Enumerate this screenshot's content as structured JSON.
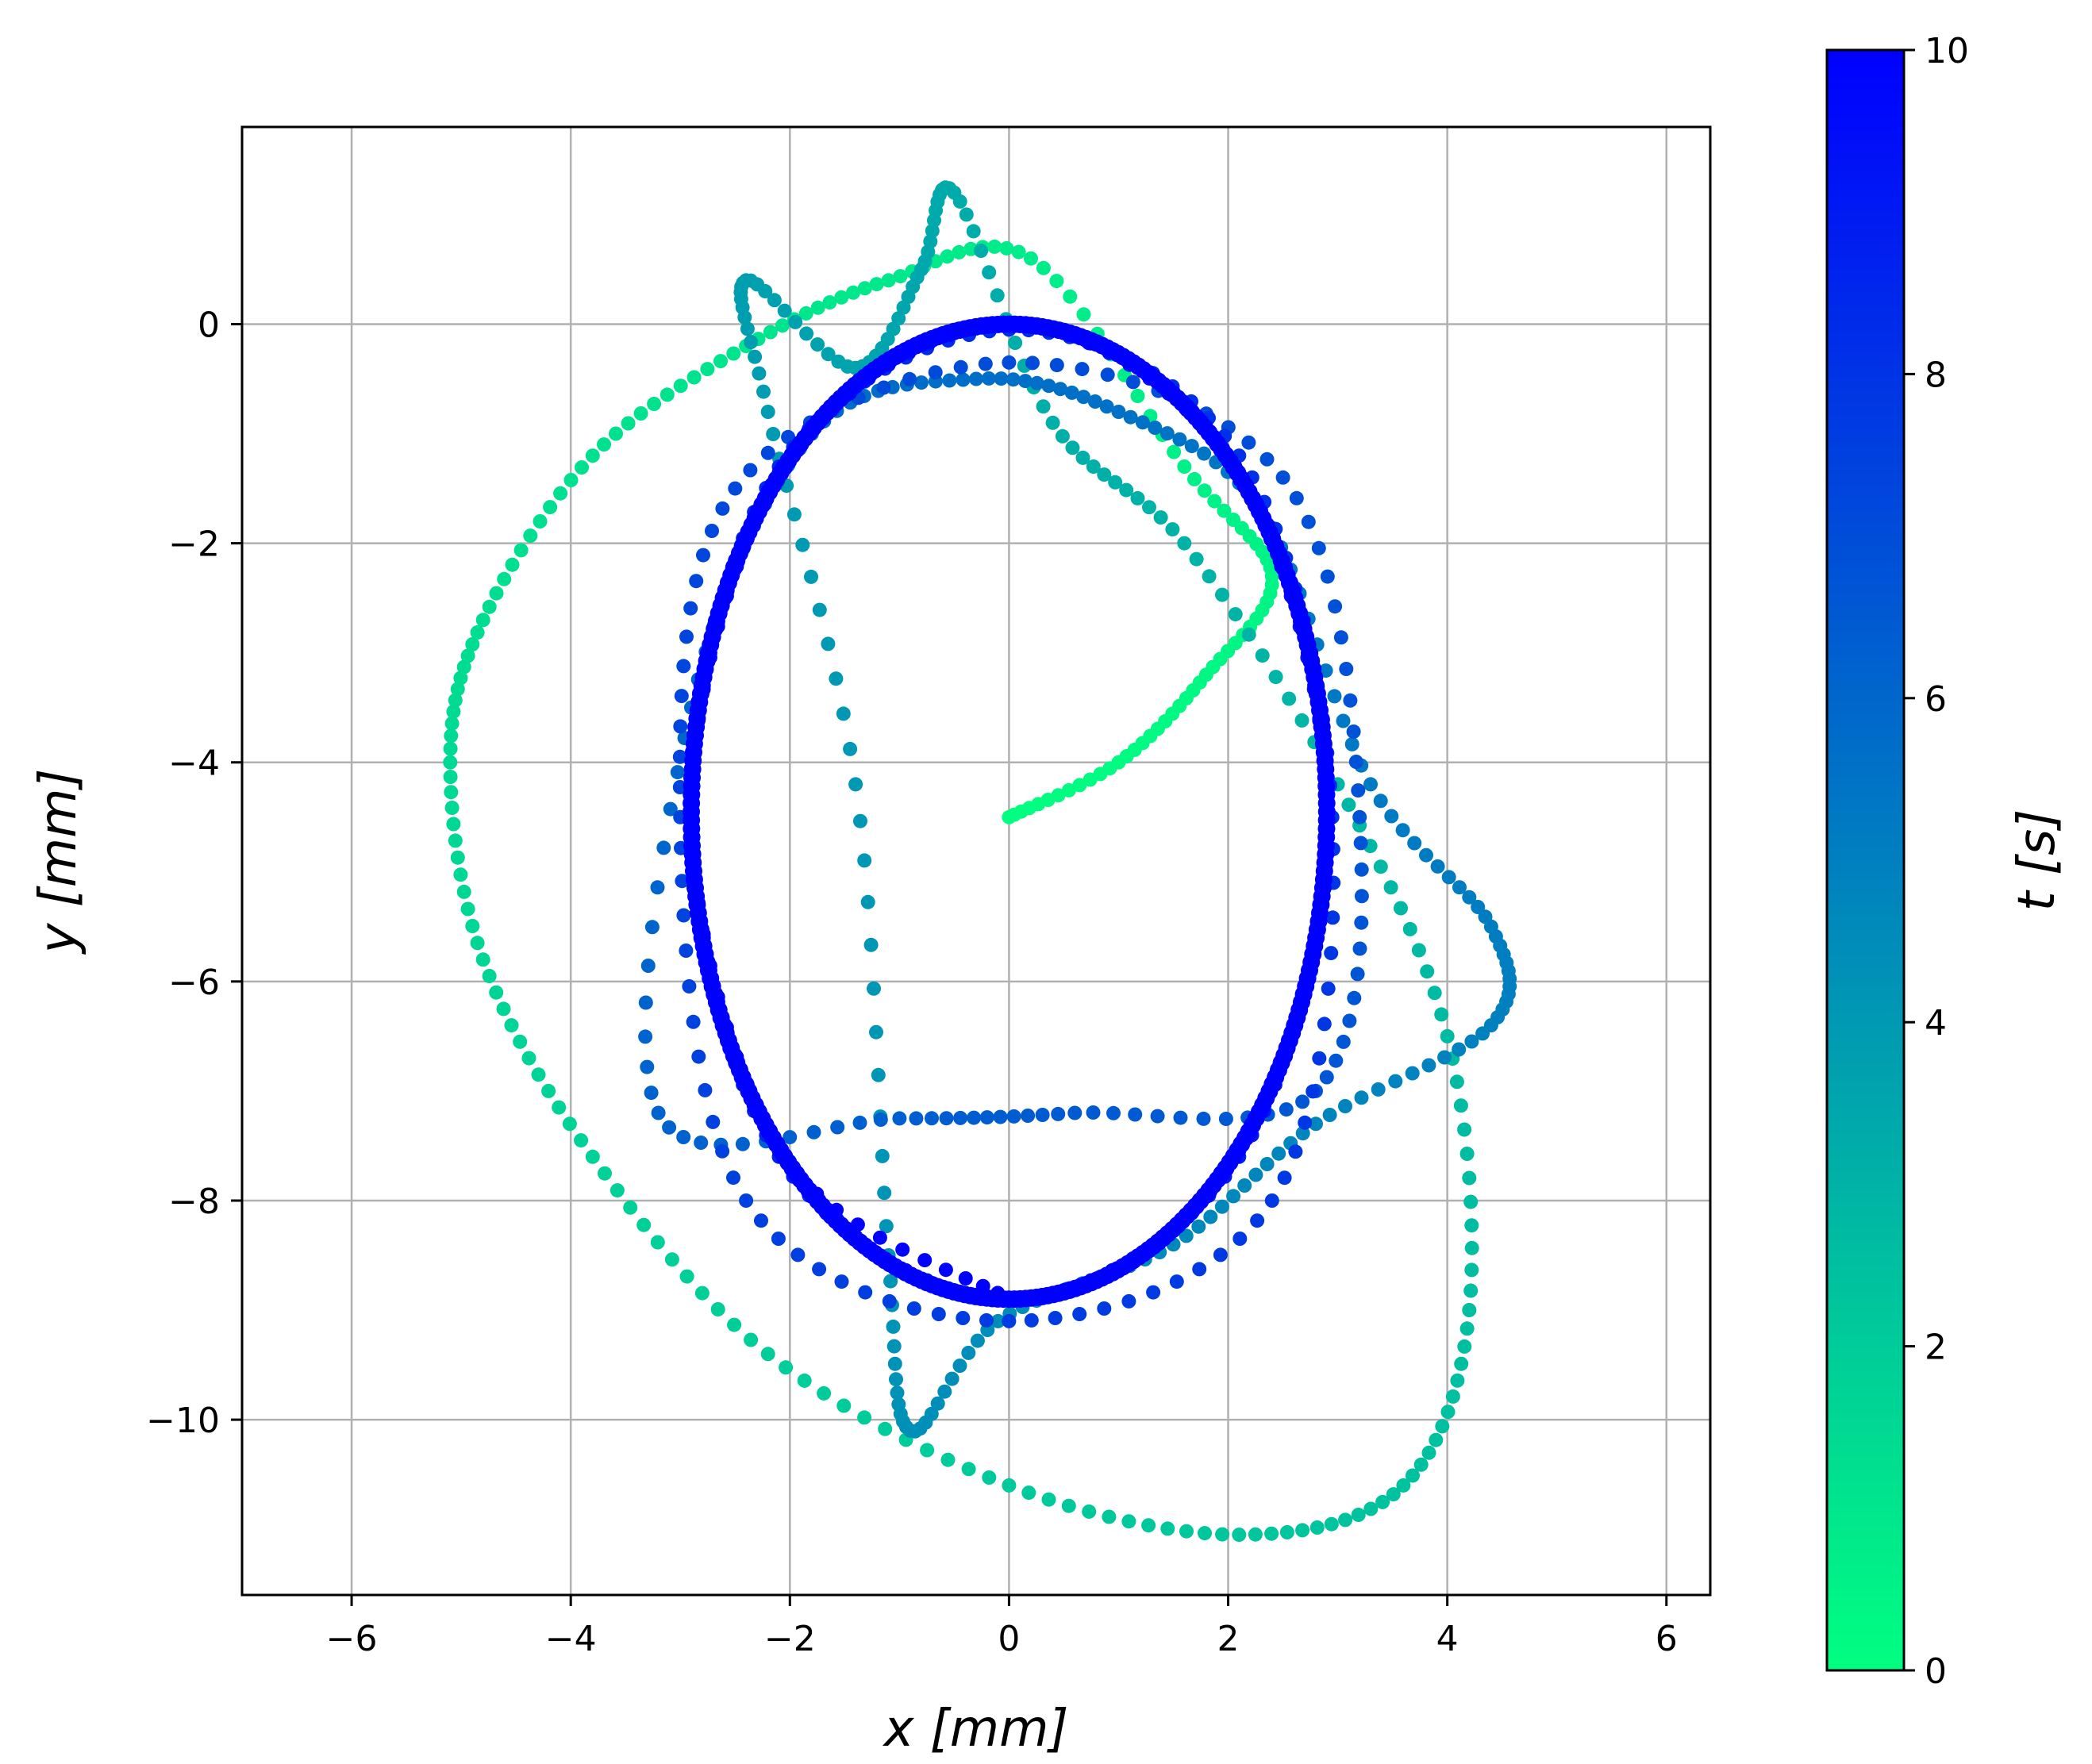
{
  "chart_data": {
    "type": "scatter",
    "title": "",
    "xlabel": "x [mm]",
    "ylabel": "y [mm]",
    "xlim": [
      -7.0,
      6.4
    ],
    "ylim": [
      -11.6,
      1.8
    ],
    "xticks": [
      -6,
      -4,
      -2,
      0,
      2,
      4,
      6
    ],
    "xtick_labels": [
      "−6",
      "−4",
      "−2",
      "0",
      "2",
      "4",
      "6"
    ],
    "yticks": [
      0,
      -2,
      -4,
      -6,
      -8,
      -10
    ],
    "ytick_labels": [
      "0",
      "−2",
      "−4",
      "−6",
      "−8",
      "−10"
    ],
    "grid": true,
    "legend": "none",
    "colorbar": {
      "label": "t [s]",
      "range": [
        0,
        10
      ],
      "ticks": [
        0,
        2,
        4,
        6,
        8,
        10
      ],
      "tick_labels": [
        "0",
        "2",
        "4",
        "6",
        "8",
        "10"
      ],
      "colormap": "winter_r",
      "color_low": "#00ff80",
      "color_high": "#0000ff"
    },
    "trajectory": {
      "t_range": [
        0,
        10
      ],
      "start_point": [
        0.0,
        -4.5
      ],
      "final_orbit_center": [
        0.0,
        -4.45
      ],
      "final_orbit_semi_axes": [
        2.9,
        4.45
      ],
      "samples": [
        [
          0.0,
          0.0,
          -4.5
        ],
        [
          0.15,
          1.0,
          -4.0
        ],
        [
          0.3,
          1.8,
          -3.2
        ],
        [
          0.45,
          2.4,
          -2.3
        ],
        [
          0.6,
          1.6,
          -1.3
        ],
        [
          0.75,
          0.2,
          0.6
        ],
        [
          0.9,
          -1.1,
          0.4
        ],
        [
          1.05,
          -2.4,
          -0.2
        ],
        [
          1.2,
          -3.8,
          -1.2
        ],
        [
          1.35,
          -4.8,
          -2.7
        ],
        [
          1.5,
          -5.1,
          -4.0
        ],
        [
          1.65,
          -4.8,
          -5.8
        ],
        [
          1.8,
          -3.8,
          -7.6
        ],
        [
          1.95,
          -2.2,
          -9.4
        ],
        [
          2.1,
          0.0,
          -10.6
        ],
        [
          2.25,
          2.1,
          -11.05
        ],
        [
          2.4,
          3.6,
          -10.6
        ],
        [
          2.55,
          4.2,
          -9.0
        ],
        [
          2.7,
          4.0,
          -6.5
        ],
        [
          2.85,
          3.0,
          -4.2
        ],
        [
          3.0,
          1.6,
          -2.0
        ],
        [
          3.15,
          0.4,
          -0.9
        ],
        [
          3.3,
          -0.5,
          1.2
        ],
        [
          3.45,
          -0.8,
          0.5
        ],
        [
          3.6,
          -1.4,
          -0.4
        ],
        [
          3.75,
          -2.4,
          0.4
        ],
        [
          3.9,
          -2.2,
          -0.8
        ],
        [
          4.05,
          -1.4,
          -4.2
        ],
        [
          4.2,
          -1.1,
          -8.5
        ],
        [
          4.35,
          -0.9,
          -10.1
        ],
        [
          4.5,
          -0.1,
          -9.1
        ],
        [
          4.65,
          1.5,
          -8.4
        ],
        [
          4.8,
          2.8,
          -7.3
        ],
        [
          4.95,
          4.4,
          -6.4
        ],
        [
          5.1,
          4.4,
          -5.5
        ],
        [
          5.25,
          3.3,
          -4.2
        ],
        [
          5.4,
          2.3,
          -1.7
        ],
        [
          5.55,
          1.0,
          -0.8
        ],
        [
          5.7,
          -0.3,
          -0.5
        ],
        [
          5.85,
          -1.8,
          -1.0
        ],
        [
          6.0,
          -2.9,
          -3.5
        ],
        [
          6.15,
          -3.2,
          -7.2
        ],
        [
          6.3,
          -1.0,
          -7.25
        ],
        [
          6.45,
          0.6,
          -7.2
        ],
        [
          6.6,
          2.8,
          -7.0
        ],
        [
          6.75,
          3.2,
          -4.5
        ],
        [
          6.9,
          2.5,
          -1.4
        ],
        [
          7.05,
          0.0,
          -0.35
        ],
        [
          7.2,
          -2.5,
          -1.5
        ],
        [
          7.35,
          -3.0,
          -4.5
        ],
        [
          7.5,
          -2.4,
          -8.0
        ],
        [
          7.65,
          0.0,
          -9.1
        ],
        [
          7.8,
          2.4,
          -8.0
        ],
        [
          7.95,
          2.95,
          -4.5
        ],
        [
          8.1,
          2.1,
          -1.2
        ],
        [
          8.25,
          0.0,
          -0.05
        ],
        [
          8.4,
          -2.1,
          -1.3
        ],
        [
          8.55,
          -2.9,
          -4.45
        ],
        [
          8.7,
          -2.1,
          -7.6
        ],
        [
          8.85,
          0.0,
          -8.9
        ],
        [
          9.0,
          2.1,
          -7.6
        ],
        [
          9.15,
          2.9,
          -4.45
        ],
        [
          9.3,
          2.05,
          -1.3
        ],
        [
          9.45,
          0.0,
          0.0
        ],
        [
          9.6,
          -2.05,
          -1.3
        ],
        [
          9.75,
          -2.9,
          -4.45
        ],
        [
          9.9,
          -2.05,
          -7.6
        ],
        [
          10.0,
          0.0,
          -8.9
        ]
      ]
    }
  }
}
